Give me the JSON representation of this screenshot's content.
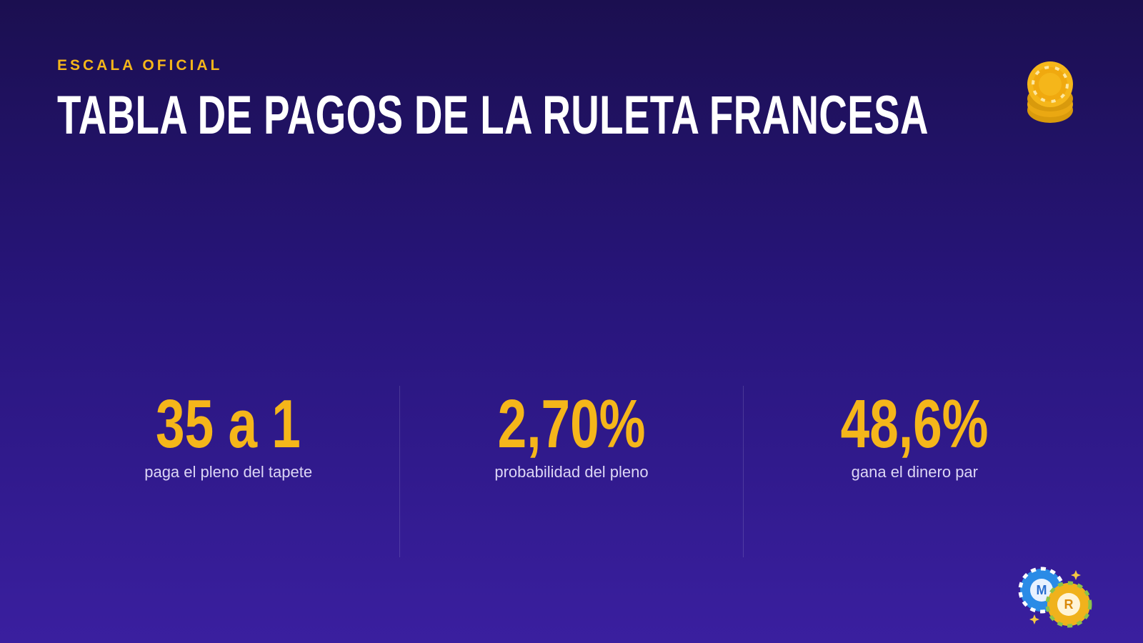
{
  "header": {
    "eyebrow": "ESCALA OFICIAL",
    "title": "TABLA DE PAGOS DE LA RULETA FRANCESA"
  },
  "stats": [
    {
      "value": "35 a 1",
      "label": "paga el pleno del tapete"
    },
    {
      "value": "2,70%",
      "label": "probabilidad del pleno"
    },
    {
      "value": "48,6%",
      "label": "gana el dinero par"
    }
  ]
}
